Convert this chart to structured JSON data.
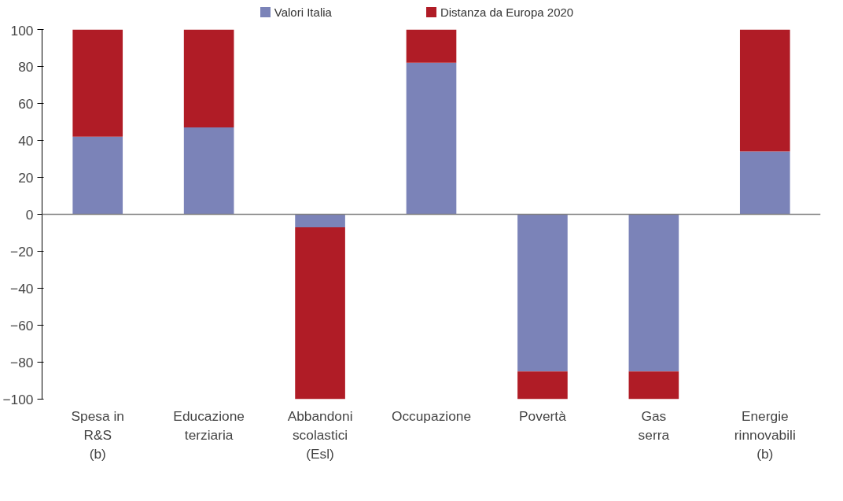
{
  "chart_data": {
    "type": "bar",
    "stacked": true,
    "categories": [
      "Spesa in\nR&S\n(b)",
      "Educazione\nterziaria",
      "Abbandoni\nscolastici\n(Esl)",
      "Occupazione",
      "Povertà",
      "Gas\nserra",
      "Energie\nrinnovabili\n(b)"
    ],
    "series": [
      {
        "name": "Valori Italia",
        "color": "#7b83b8",
        "values": [
          42,
          47,
          -7,
          82,
          -85,
          -85,
          34
        ]
      },
      {
        "name": "Distanza da Europa 2020",
        "color": "#b01c26",
        "values": [
          58,
          53,
          -93,
          18,
          -15,
          -15,
          66
        ]
      }
    ],
    "ylim": [
      -100,
      100
    ],
    "yticks": [
      -100,
      -80,
      -60,
      -40,
      -20,
      0,
      20,
      40,
      60,
      80,
      100
    ],
    "ref_lines": [
      {
        "axis": "y",
        "value": 0,
        "color": "#808080"
      }
    ],
    "grid": false,
    "legend": "top"
  }
}
